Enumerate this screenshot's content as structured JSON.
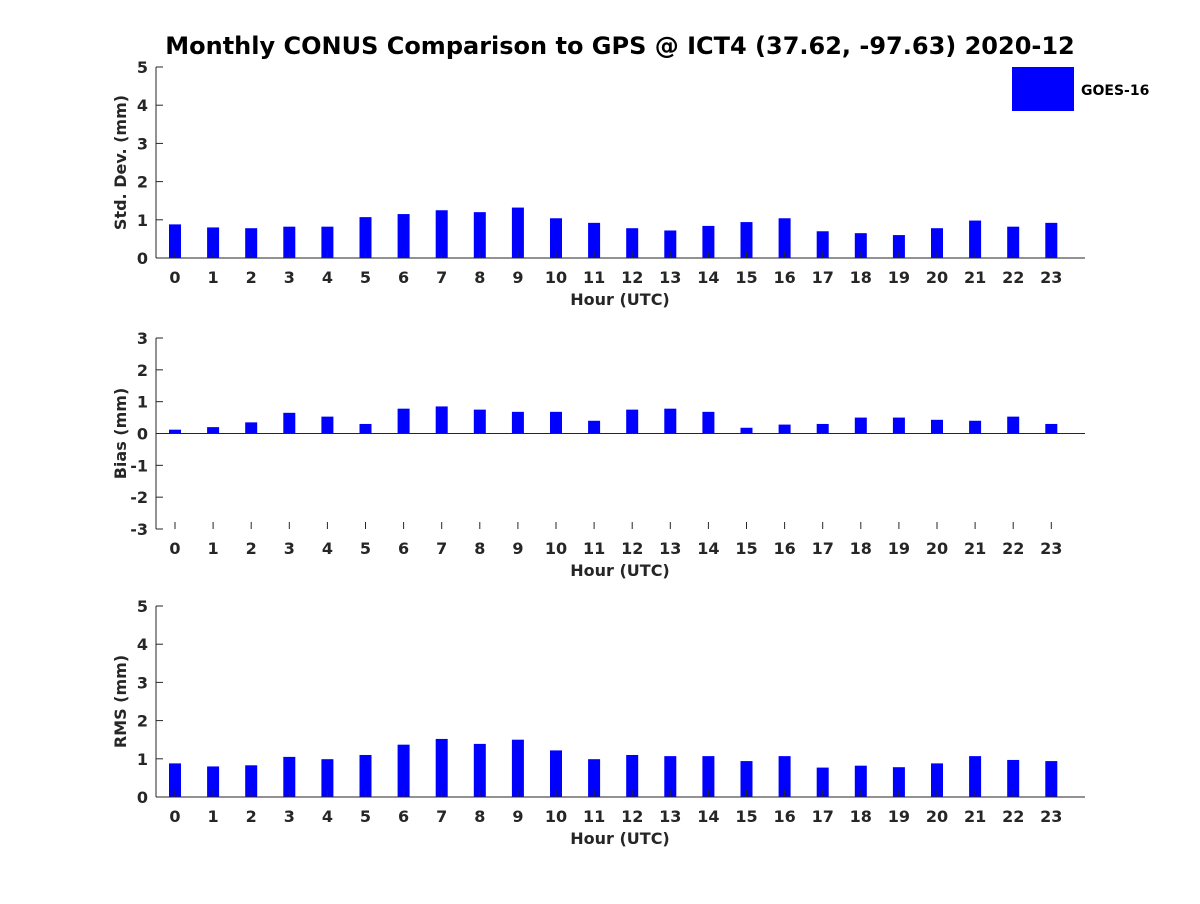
{
  "title": "Monthly CONUS Comparison to GPS @ ICT4 (37.62, -97.63) 2020-12",
  "legend": {
    "label": "GOES-16",
    "color": "#0000ff",
    "placement": "top-right"
  },
  "colors": {
    "bar": "#0000ff",
    "axis": "#262626",
    "text": "#262626",
    "title": "#000000"
  },
  "chart_data": [
    {
      "type": "bar",
      "title": "Monthly CONUS Comparison to GPS @ ICT4 (37.62, -97.63) 2020-12",
      "xlabel": "Hour (UTC)",
      "ylabel": "Std. Dev. (mm)",
      "ylim": [
        0,
        5
      ],
      "yticks": [
        "0",
        "1",
        "2",
        "3",
        "4",
        "5"
      ],
      "categories": [
        "0",
        "1",
        "2",
        "3",
        "4",
        "5",
        "6",
        "7",
        "8",
        "9",
        "10",
        "11",
        "12",
        "13",
        "14",
        "15",
        "16",
        "17",
        "18",
        "19",
        "20",
        "21",
        "22",
        "23"
      ],
      "series": [
        {
          "name": "GOES-16",
          "values": [
            0.88,
            0.8,
            0.78,
            0.82,
            0.82,
            1.07,
            1.15,
            1.25,
            1.2,
            1.32,
            1.04,
            0.92,
            0.78,
            0.72,
            0.84,
            0.94,
            1.04,
            0.7,
            0.65,
            0.6,
            0.78,
            0.98,
            0.82,
            0.92
          ]
        }
      ],
      "grid": false
    },
    {
      "type": "bar",
      "xlabel": "Hour (UTC)",
      "ylabel": "Bias (mm)",
      "ylim": [
        -3,
        3
      ],
      "yticks": [
        "-3",
        "-2",
        "-1",
        "0",
        "1",
        "2",
        "3"
      ],
      "categories": [
        "0",
        "1",
        "2",
        "3",
        "4",
        "5",
        "6",
        "7",
        "8",
        "9",
        "10",
        "11",
        "12",
        "13",
        "14",
        "15",
        "16",
        "17",
        "18",
        "19",
        "20",
        "21",
        "22",
        "23"
      ],
      "series": [
        {
          "name": "GOES-16",
          "values": [
            0.12,
            0.2,
            0.35,
            0.65,
            0.53,
            0.3,
            0.78,
            0.85,
            0.75,
            0.68,
            0.68,
            0.4,
            0.75,
            0.78,
            0.68,
            0.18,
            0.28,
            0.3,
            0.5,
            0.5,
            0.43,
            0.4,
            0.53,
            0.3
          ]
        }
      ],
      "grid": false
    },
    {
      "type": "bar",
      "xlabel": "Hour (UTC)",
      "ylabel": "RMS (mm)",
      "ylim": [
        0,
        5
      ],
      "yticks": [
        "0",
        "1",
        "2",
        "3",
        "4",
        "5"
      ],
      "categories": [
        "0",
        "1",
        "2",
        "3",
        "4",
        "5",
        "6",
        "7",
        "8",
        "9",
        "10",
        "11",
        "12",
        "13",
        "14",
        "15",
        "16",
        "17",
        "18",
        "19",
        "20",
        "21",
        "22",
        "23"
      ],
      "series": [
        {
          "name": "GOES-16",
          "values": [
            0.88,
            0.8,
            0.83,
            1.05,
            0.99,
            1.1,
            1.37,
            1.52,
            1.39,
            1.5,
            1.22,
            0.99,
            1.1,
            1.07,
            1.07,
            0.94,
            1.07,
            0.77,
            0.82,
            0.78,
            0.88,
            1.07,
            0.97,
            0.94
          ]
        }
      ],
      "grid": false
    }
  ]
}
